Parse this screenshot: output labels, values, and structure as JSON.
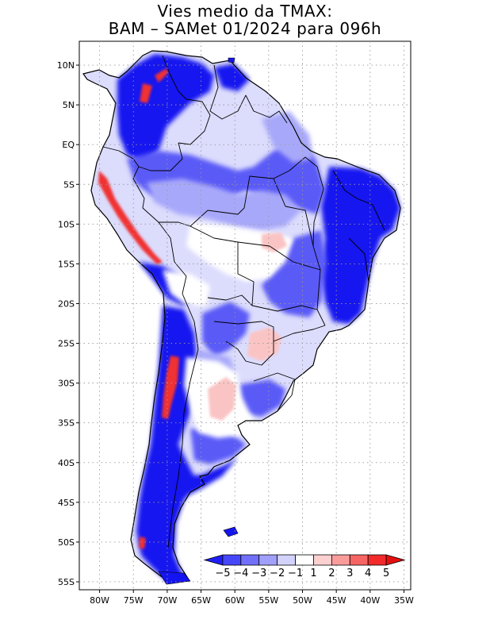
{
  "title": {
    "line1": "Vies medio da TMAX:",
    "line2": "BAM – SAMet 01/2024  para 096h"
  },
  "map": {
    "lon_range": [
      -83,
      -34
    ],
    "lat_range": [
      -56,
      13
    ],
    "lat_ticks": [
      {
        "value": 10,
        "label": "10N"
      },
      {
        "value": 5,
        "label": "5N"
      },
      {
        "value": 0,
        "label": "EQ"
      },
      {
        "value": -5,
        "label": "5S"
      },
      {
        "value": -10,
        "label": "10S"
      },
      {
        "value": -15,
        "label": "15S"
      },
      {
        "value": -20,
        "label": "20S"
      },
      {
        "value": -25,
        "label": "25S"
      },
      {
        "value": -30,
        "label": "30S"
      },
      {
        "value": -35,
        "label": "35S"
      },
      {
        "value": -40,
        "label": "40S"
      },
      {
        "value": -45,
        "label": "45S"
      },
      {
        "value": -50,
        "label": "50S"
      },
      {
        "value": -55,
        "label": "55S"
      }
    ],
    "lon_ticks": [
      {
        "value": -80,
        "label": "80W"
      },
      {
        "value": -75,
        "label": "75W"
      },
      {
        "value": -70,
        "label": "70W"
      },
      {
        "value": -65,
        "label": "65W"
      },
      {
        "value": -60,
        "label": "60W"
      },
      {
        "value": -55,
        "label": "55W"
      },
      {
        "value": -50,
        "label": "50W"
      },
      {
        "value": -45,
        "label": "45W"
      },
      {
        "value": -40,
        "label": "40W"
      },
      {
        "value": -35,
        "label": "35W"
      }
    ]
  },
  "colorbar": {
    "labels": [
      "−5",
      "−4",
      "−3",
      "−2",
      "−1",
      "1",
      "2",
      "3",
      "4",
      "5"
    ],
    "colors": [
      "#1f1ff5",
      "#4646f8",
      "#7070fa",
      "#a0a0fb",
      "#d2d2fd",
      "#ffffff",
      "#fdd0d0",
      "#fa9c9c",
      "#f76464",
      "#f22a2a",
      "#e60f0f"
    ]
  },
  "colors": {
    "strong_blue": "#1414f0",
    "mid_blue": "#5a5af7",
    "light_blue": "#a8a8fb",
    "pale_blue": "#dcdcfd",
    "white": "#ffffff",
    "pale_red": "#fbc4c4",
    "red": "#f03030"
  }
}
